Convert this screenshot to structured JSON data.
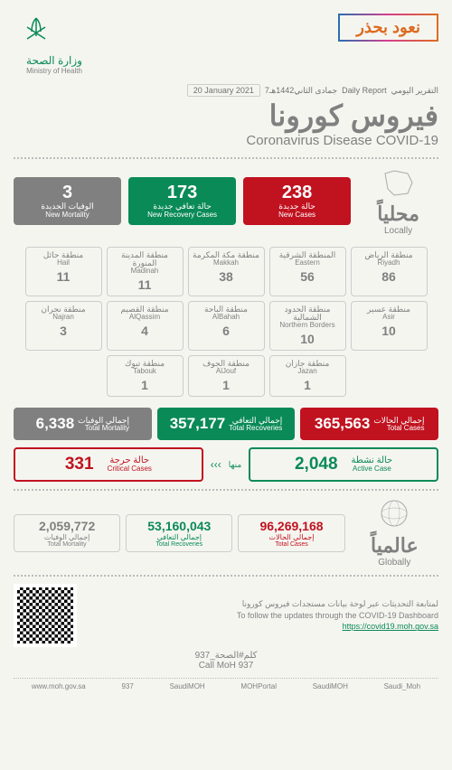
{
  "header": {
    "ministry_ar": "وزارة الصحة",
    "ministry_en": "Ministry of Health",
    "campaign_text1": "نعود",
    "campaign_text2": "بحذر",
    "daily_report_en": "Daily Report",
    "daily_report_ar": "التقرير اليومي",
    "hijri": "7جمادى الثاني1442هـ",
    "date": "20 January 2021"
  },
  "title": {
    "ar": "فيروس كورونا",
    "en": "Coronavirus Disease COVID-19"
  },
  "locally": {
    "ar": "محلياً",
    "en": "Locally",
    "stats": [
      {
        "num": "3",
        "ar": "الوفيات الجديدة",
        "en": "New Mortality",
        "color": "bg-grey"
      },
      {
        "num": "173",
        "ar": "حالة تعافي جديدة",
        "en": "New Recovery Cases",
        "color": "bg-green"
      },
      {
        "num": "238",
        "ar": "حالة جديدة",
        "en": "New Cases",
        "color": "bg-red"
      }
    ]
  },
  "regions": [
    {
      "ar": "منطقة الرياض",
      "en": "Riyadh",
      "num": "86"
    },
    {
      "ar": "المنطقة الشرقية",
      "en": "Eastern",
      "num": "56"
    },
    {
      "ar": "منطقة مكة المكرمة",
      "en": "Makkah",
      "num": "38"
    },
    {
      "ar": "منطقة المدينة المنورة",
      "en": "Madinah",
      "num": "11"
    },
    {
      "ar": "منطقة حائل",
      "en": "Hail",
      "num": "11"
    },
    {
      "ar": "منطقة عسير",
      "en": "Asir",
      "num": "10"
    },
    {
      "ar": "منطقة الحدود الشمالية",
      "en": "Northern Borders",
      "num": "10"
    },
    {
      "ar": "منطقة الباحة",
      "en": "AlBahah",
      "num": "6"
    },
    {
      "ar": "منطقة القصيم",
      "en": "AlQassim",
      "num": "4"
    },
    {
      "ar": "منطقة نجران",
      "en": "Najran",
      "num": "3"
    },
    {
      "ar": "منطقة جازان",
      "en": "Jazan",
      "num": "1"
    },
    {
      "ar": "منطقة الجوف",
      "en": "AlJouf",
      "num": "1"
    },
    {
      "ar": "منطقة تبوك",
      "en": "Tabouk",
      "num": "1"
    }
  ],
  "totals": [
    {
      "num": "6,338",
      "ar": "إجمالي الوفيات",
      "en": "Total Mortality",
      "color": "bg-grey"
    },
    {
      "num": "357,177",
      "ar": "إجمالي التعافي",
      "en": "Total Recoveries",
      "color": "bg-green"
    },
    {
      "num": "365,563",
      "ar": "إجمالي الحالات",
      "en": "Total Cases",
      "color": "bg-red"
    }
  ],
  "middle": {
    "minha": "منها",
    "arrows": "‹‹‹",
    "critical": {
      "num": "331",
      "ar": "حالة حرجة",
      "en": "Critical Cases"
    },
    "active": {
      "num": "2,048",
      "ar": "حالة نشطة",
      "en": "Active Case"
    }
  },
  "globally": {
    "ar": "عالمياً",
    "en": "Globally",
    "stats": [
      {
        "num": "2,059,772",
        "ar": "إجمالي الوفيات",
        "en": "Total Mortality",
        "color": "c-grey"
      },
      {
        "num": "53,160,043",
        "ar": "إجمالي التعافي",
        "en": "Total Recoveries",
        "color": "c-green"
      },
      {
        "num": "96,269,168",
        "ar": "إجمالي الحالات",
        "en": "Total Cases",
        "color": "c-red"
      }
    ]
  },
  "footer": {
    "line1_ar": "لمتابعة التحديثات عبر لوحة بيانات مستجدات فيروس كورونا",
    "line2_en": "To follow the updates through the COVID-19 Dashboard",
    "link": "https://covid19.moh.gov.sa",
    "call_ar": "كلم#الصحة_937",
    "call_en": "Call MoH 937"
  },
  "social": [
    "www.moh.gov.sa",
    "937",
    "SaudiMOH",
    "MOHPortal",
    "SaudiMOH",
    "Saudi_Moh"
  ]
}
